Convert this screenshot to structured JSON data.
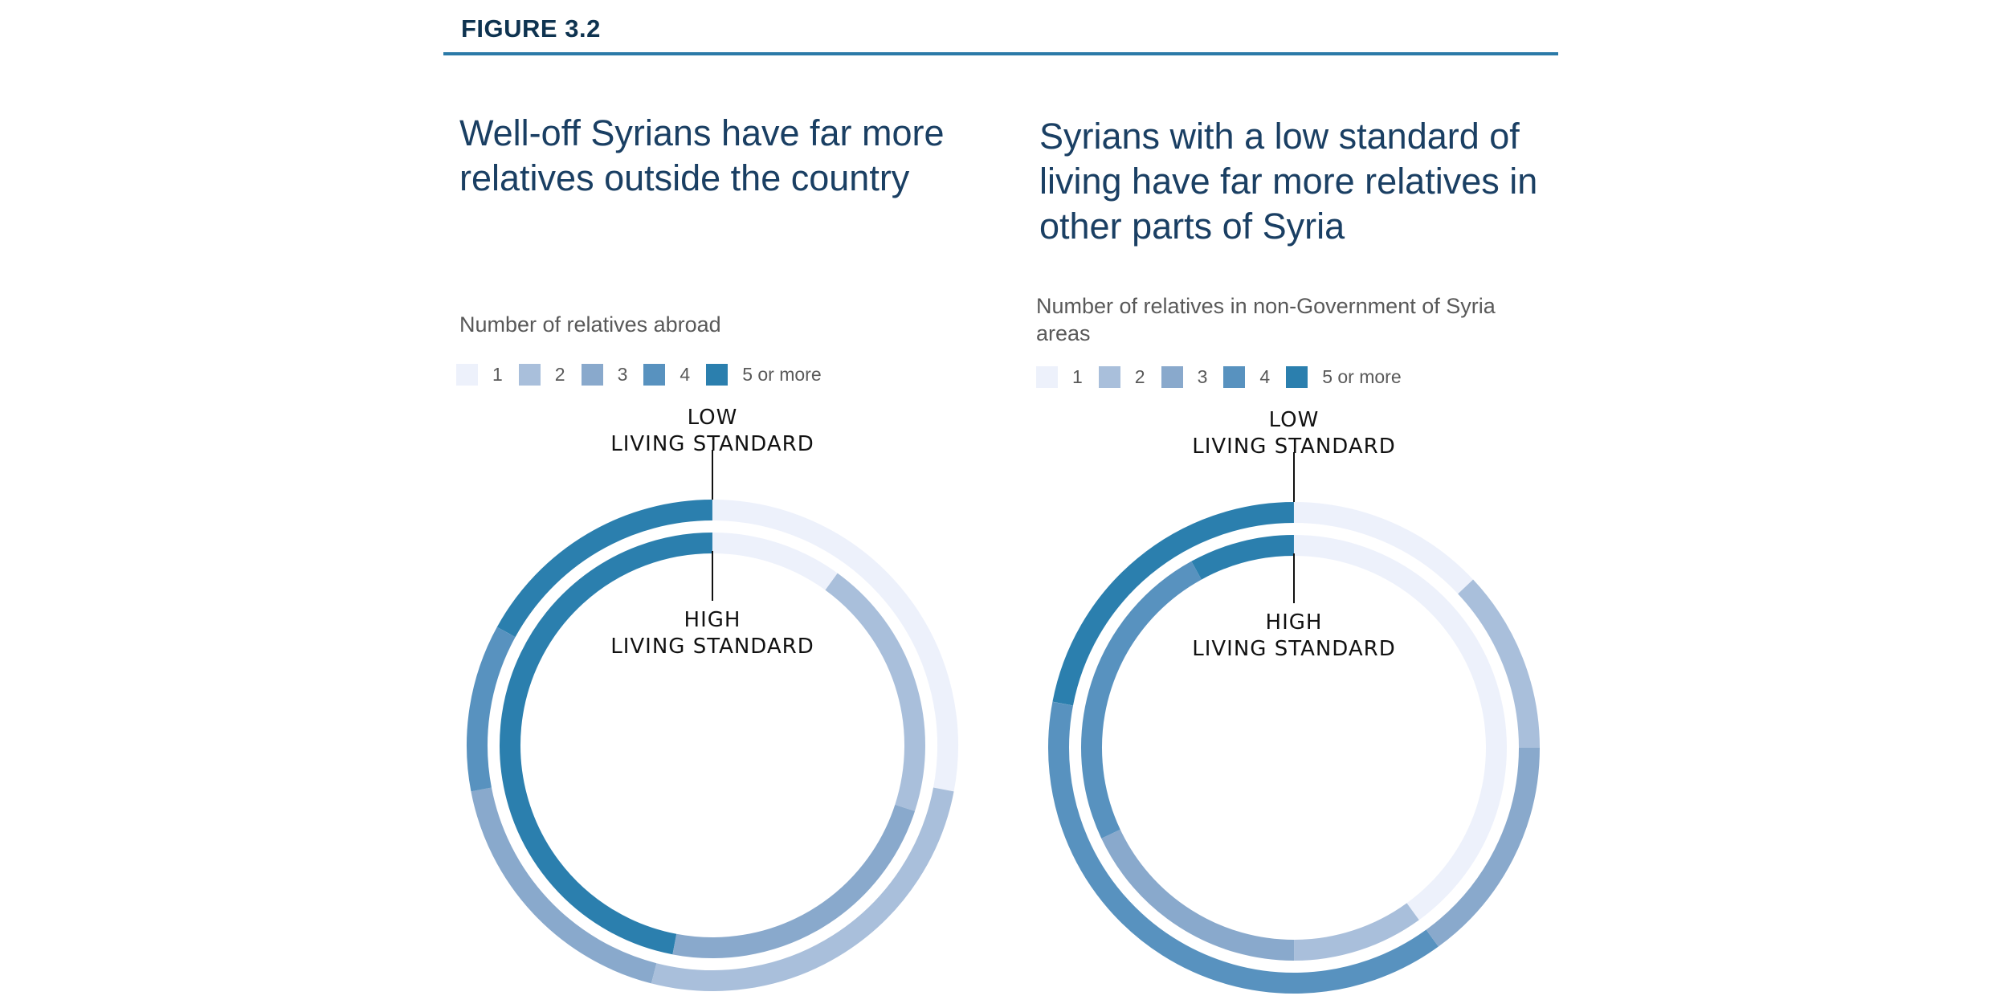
{
  "figure_label": "FIGURE 3.2",
  "legend_labels": [
    "1",
    "2",
    "3",
    "4",
    "5 or more"
  ],
  "legend_colors": [
    "#edf1fb",
    "#a9bfdb",
    "#89a9cc",
    "#5892bf",
    "#2b7fae"
  ],
  "ring_labels": {
    "outer": [
      "LOW",
      "LIVING STANDARD"
    ],
    "inner": [
      "HIGH",
      "LIVING STANDARD"
    ]
  },
  "chart_data": [
    {
      "type": "donut",
      "title": "Well-off Syrians have far more relatives outside the country",
      "subtitle": "Number of relatives abroad",
      "categories": [
        "1",
        "2",
        "3",
        "4",
        "5 or more"
      ],
      "series": [
        {
          "name": "LOW LIVING STANDARD",
          "ring": "outer",
          "values": [
            28,
            26,
            18,
            11,
            17
          ]
        },
        {
          "name": "HIGH LIVING STANDARD",
          "ring": "inner",
          "values": [
            10,
            20,
            23,
            0,
            47
          ]
        }
      ]
    },
    {
      "type": "donut",
      "title": "Syrians with a low standard of living have far more relatives in other parts of Syria",
      "subtitle": "Number of relatives in non-Government of Syria areas",
      "categories": [
        "1",
        "2",
        "3",
        "4",
        "5 or more"
      ],
      "series": [
        {
          "name": "LOW LIVING STANDARD",
          "ring": "outer",
          "values": [
            13,
            12,
            15,
            38,
            22
          ]
        },
        {
          "name": "HIGH LIVING STANDARD",
          "ring": "inner",
          "values": [
            40,
            10,
            18,
            24,
            8
          ]
        }
      ]
    }
  ]
}
